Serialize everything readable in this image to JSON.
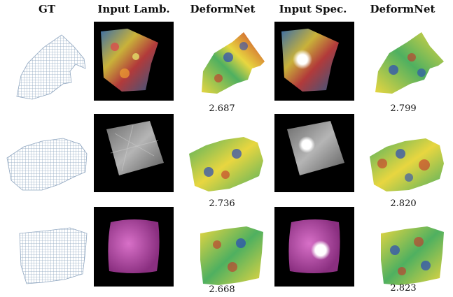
{
  "headers": [
    "GT",
    "Input Lamb.",
    "DeformNet",
    "Input Spec.",
    "DeformNet"
  ],
  "rows": [
    {
      "score_lamb": "2.687",
      "score_spec": "2.799",
      "texture": "colorful"
    },
    {
      "score_lamb": "2.736",
      "score_spec": "2.820",
      "texture": "gray"
    },
    {
      "score_lamb": "2.668",
      "score_spec": "2.823",
      "texture": "pink"
    }
  ],
  "colors": {
    "mesh_line": "#8fa6c0",
    "heat_low": "#2b4ab8",
    "heat_mid": "#e8d640",
    "heat_high": "#c8322a",
    "pink": "#c04fb0",
    "gray": "#9a9a9a"
  }
}
